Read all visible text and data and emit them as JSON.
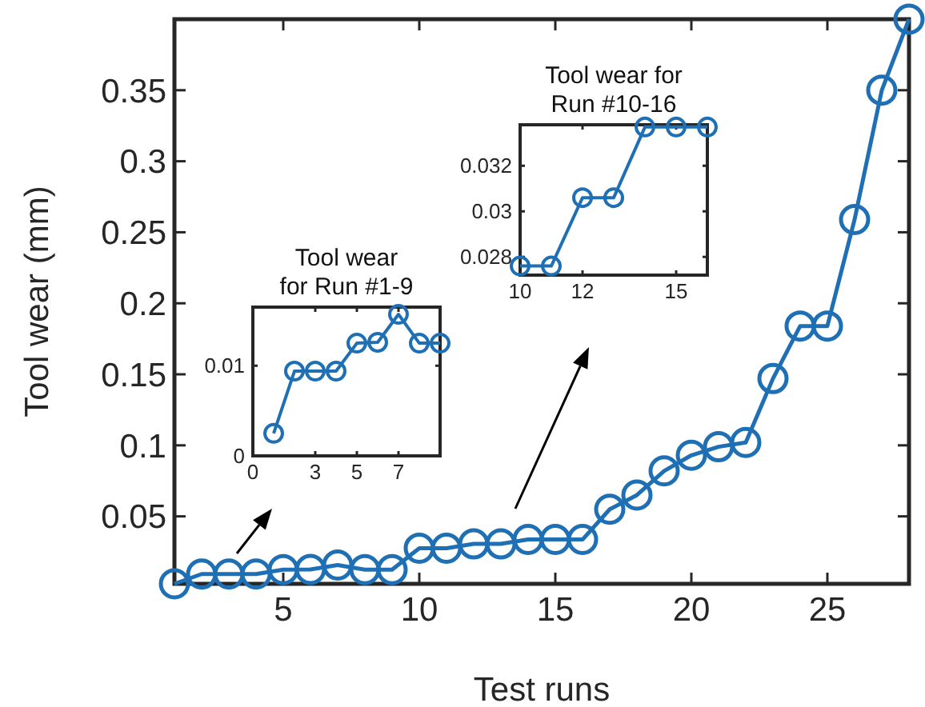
{
  "chart_data": [
    {
      "type": "line",
      "xlabel": "Test runs",
      "ylabel": "Tool wear (mm)",
      "x": [
        1,
        2,
        3,
        4,
        5,
        6,
        7,
        8,
        9,
        10,
        11,
        12,
        13,
        14,
        15,
        16,
        17,
        18,
        19,
        20,
        21,
        22,
        23,
        24,
        25,
        26,
        27,
        28
      ],
      "marker": "circle",
      "line_style": "solid",
      "xlim": [
        1,
        28
      ],
      "ylim": [
        0.0025,
        0.4
      ],
      "xticks": [
        5,
        10,
        15,
        20,
        25
      ],
      "yticks": [
        0.05,
        0.1,
        0.15,
        0.2,
        0.25,
        0.3,
        0.35
      ],
      "series": [
        {
          "color": "#1f6fb4",
          "values": [
            0.0025,
            0.0094,
            0.0094,
            0.0094,
            0.0125,
            0.0126,
            0.0157,
            0.0125,
            0.0125,
            0.0276,
            0.0276,
            0.0306,
            0.0306,
            0.0337,
            0.0337,
            0.0337,
            0.055,
            0.065,
            0.082,
            0.093,
            0.099,
            0.102,
            0.147,
            0.184,
            0.184,
            0.259,
            0.35,
            0.4
          ]
        }
      ]
    },
    {
      "type": "line",
      "title": "Tool wear\nfor Run #1-9",
      "x": [
        1,
        2,
        3,
        4,
        5,
        6,
        7,
        8,
        9
      ],
      "marker": "circle",
      "line_style": "solid",
      "xlim": [
        0,
        9
      ],
      "ylim": [
        0,
        0.0165
      ],
      "xticks": [
        0,
        3,
        5,
        7
      ],
      "yticks": [
        0,
        0.01
      ],
      "series": [
        {
          "color": "#1f6fb4",
          "values": [
            0.0025,
            0.0094,
            0.0094,
            0.0094,
            0.0125,
            0.0126,
            0.0157,
            0.0125,
            0.0125
          ]
        }
      ]
    },
    {
      "type": "line",
      "title": "Tool wear for\nRun #10-16",
      "x": [
        10,
        11,
        12,
        13,
        14,
        15,
        16
      ],
      "marker": "circle",
      "line_style": "solid",
      "xlim": [
        10,
        16
      ],
      "ylim": [
        0.0272,
        0.0338
      ],
      "xticks": [
        10,
        12,
        15
      ],
      "yticks": [
        0.028,
        0.03,
        0.032
      ],
      "series": [
        {
          "color": "#1f6fb4",
          "values": [
            0.0276,
            0.0276,
            0.0306,
            0.0306,
            0.0337,
            0.0337,
            0.0337
          ]
        }
      ]
    }
  ]
}
